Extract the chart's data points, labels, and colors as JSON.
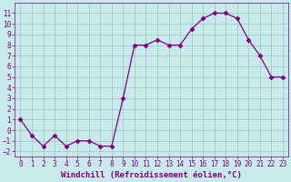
{
  "x": [
    0,
    1,
    2,
    3,
    4,
    5,
    6,
    7,
    8,
    9,
    10,
    11,
    12,
    13,
    14,
    15,
    16,
    17,
    18,
    19,
    20,
    21,
    22,
    23
  ],
  "y": [
    1,
    -0.5,
    -1.5,
    -0.5,
    -1.5,
    -1,
    -1,
    -1.5,
    -1.5,
    3.0,
    8.0,
    8.0,
    8.5,
    8.0,
    8.0,
    9.5,
    10.5,
    11.0,
    11.0,
    10.5,
    8.5,
    7.0,
    5.0,
    5.0
  ],
  "line_color": "#800080",
  "marker": "D",
  "marker_size": 2.5,
  "bg_color": "#c8eaea",
  "grid_color": "#a0cccc",
  "xlabel": "Windchill (Refroidissement éolien,°C)",
  "xlabel_fontsize": 6.5,
  "ylim": [
    -2.5,
    12
  ],
  "xlim": [
    -0.5,
    23.5
  ],
  "yticks": [
    -2,
    -1,
    0,
    1,
    2,
    3,
    4,
    5,
    6,
    7,
    8,
    9,
    10,
    11
  ],
  "xticks": [
    0,
    1,
    2,
    3,
    4,
    5,
    6,
    7,
    8,
    9,
    10,
    11,
    12,
    13,
    14,
    15,
    16,
    17,
    18,
    19,
    20,
    21,
    22,
    23
  ],
  "tick_fontsize": 5.5
}
